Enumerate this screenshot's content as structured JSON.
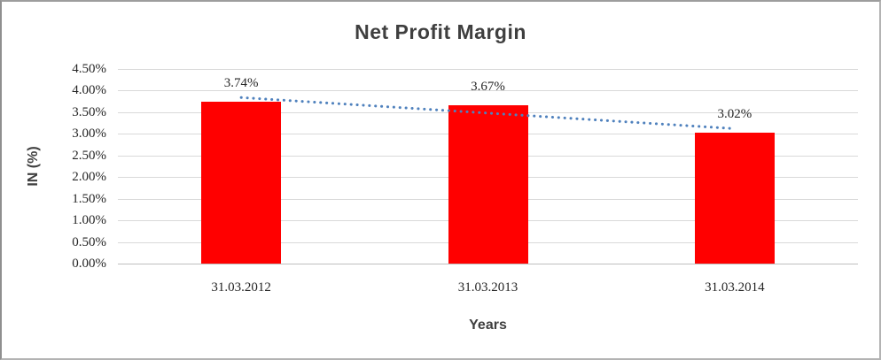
{
  "title": "Net Profit Margin",
  "chart_data": {
    "type": "bar",
    "title": "Net Profit Margin",
    "categories": [
      "31.03.2012",
      "31.03.2013",
      "31.03.2014"
    ],
    "values": [
      3.74,
      3.67,
      3.02
    ],
    "data_labels": [
      "3.74%",
      "3.67%",
      "3.02%"
    ],
    "xlabel": "Years",
    "ylabel": "IN (%)",
    "ylim": [
      0,
      4.5
    ],
    "ytick_step": 0.5,
    "ytick_labels": [
      "0.00%",
      "0.50%",
      "1.00%",
      "1.50%",
      "2.00%",
      "2.50%",
      "3.00%",
      "3.50%",
      "4.00%",
      "4.50%"
    ],
    "grid": true,
    "legend_position": "none",
    "bar_color": "#ff0000",
    "trendline": {
      "type": "linear",
      "style": "dotted",
      "color": "#4f81bd",
      "start_value": 3.84,
      "end_value": 3.12
    }
  },
  "colors": {
    "bar": "#ff0000",
    "trendline": "#4f81bd",
    "gridline": "#d9d9d9",
    "axis_line": "#bfbfbf",
    "tick_text": "#262626",
    "title_text": "#3f3f3f",
    "background": "#ffffff",
    "frame_border": "#b3b3b3"
  }
}
